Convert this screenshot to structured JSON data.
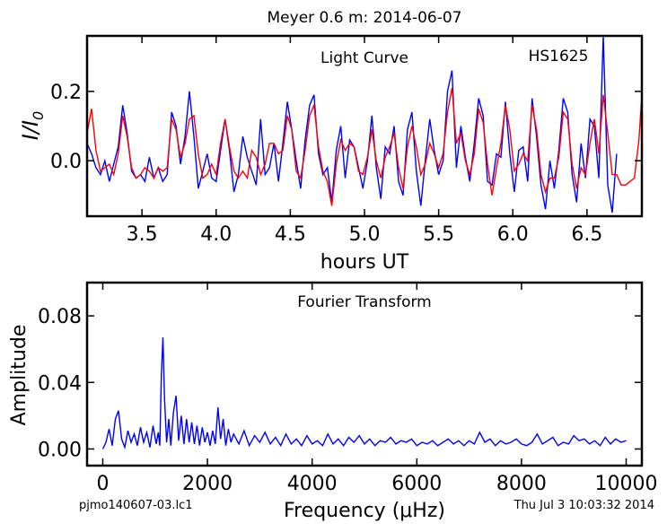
{
  "page": {
    "title": "Meyer 0.6 m:  2014-06-07",
    "footer_left": "pjmo140607-03.lc1",
    "footer_right": "Thu Jul  3 10:03:32 2014"
  },
  "chart_data": [
    {
      "type": "line",
      "title": "Light Curve",
      "annotation": "HS1625",
      "xlabel": "hours UT",
      "ylabel_main": "I/I",
      "ylabel_sub": "0",
      "xlim": [
        3.13,
        6.87
      ],
      "ylim": [
        -0.16,
        0.36
      ],
      "xticks": [
        3.5,
        4.0,
        4.5,
        5.0,
        5.5,
        6.0,
        6.5
      ],
      "xtick_labels": [
        "3.5",
        "4.0",
        "4.5",
        "5.0",
        "5.5",
        "6.0",
        "6.5"
      ],
      "yticks": [
        0.0,
        0.2
      ],
      "ytick_labels": [
        "0.0",
        "0.2"
      ],
      "grid": false,
      "series": [
        {
          "color": "#0000ff",
          "x": [
            3.13,
            3.16,
            3.19,
            3.22,
            3.25,
            3.28,
            3.31,
            3.34,
            3.37,
            3.4,
            3.43,
            3.46,
            3.49,
            3.52,
            3.55,
            3.58,
            3.61,
            3.64,
            3.67,
            3.7,
            3.73,
            3.76,
            3.79,
            3.82,
            3.85,
            3.88,
            3.91,
            3.94,
            3.97,
            4.0,
            4.03,
            4.06,
            4.09,
            4.12,
            4.15,
            4.18,
            4.21,
            4.24,
            4.27,
            4.3,
            4.33,
            4.36,
            4.39,
            4.42,
            4.45,
            4.48,
            4.51,
            4.54,
            4.57,
            4.6,
            4.63,
            4.66,
            4.69,
            4.72,
            4.75,
            4.78,
            4.81,
            4.84,
            4.87,
            4.9,
            4.93,
            4.96,
            4.99,
            5.02,
            5.05,
            5.08,
            5.11,
            5.14,
            5.17,
            5.2,
            5.23,
            5.26,
            5.29,
            5.32,
            5.35,
            5.38,
            5.41,
            5.44,
            5.47,
            5.5,
            5.53,
            5.56,
            5.59,
            5.62,
            5.65,
            5.68,
            5.71,
            5.74,
            5.77,
            5.8,
            5.83,
            5.86,
            5.89,
            5.92,
            5.95,
            5.98,
            6.01,
            6.04,
            6.07,
            6.1,
            6.13,
            6.16,
            6.19,
            6.22,
            6.25,
            6.28,
            6.31,
            6.34,
            6.37,
            6.4,
            6.43,
            6.46,
            6.49,
            6.52,
            6.55,
            6.58,
            6.61,
            6.64,
            6.67,
            6.7
          ],
          "y": [
            0.05,
            0.02,
            -0.02,
            -0.04,
            0.0,
            -0.06,
            -0.01,
            0.04,
            0.16,
            0.08,
            -0.03,
            -0.05,
            -0.04,
            -0.06,
            0.01,
            -0.05,
            -0.02,
            -0.06,
            -0.04,
            0.14,
            0.1,
            -0.01,
            0.07,
            0.2,
            0.07,
            -0.08,
            -0.03,
            0.02,
            -0.05,
            -0.06,
            0.03,
            0.12,
            0.03,
            -0.09,
            -0.04,
            0.07,
            0.01,
            -0.03,
            -0.07,
            0.12,
            -0.04,
            -0.02,
            0.05,
            -0.06,
            0.05,
            0.17,
            0.09,
            0.0,
            -0.08,
            0.06,
            0.16,
            0.19,
            0.02,
            -0.04,
            -0.02,
            -0.12,
            0.03,
            0.1,
            -0.05,
            0.06,
            0.04,
            -0.02,
            -0.08,
            0.0,
            0.13,
            -0.02,
            -0.11,
            0.04,
            0.02,
            0.1,
            -0.06,
            -0.1,
            0.09,
            0.14,
            -0.03,
            -0.13,
            0.0,
            0.12,
            0.03,
            -0.04,
            0.0,
            0.2,
            0.26,
            -0.02,
            0.1,
            0.01,
            -0.06,
            0.05,
            0.18,
            0.13,
            -0.06,
            -0.07,
            0.02,
            0.01,
            0.17,
            0.02,
            -0.09,
            0.03,
            0.04,
            -0.06,
            0.18,
            0.07,
            -0.07,
            -0.14,
            0.0,
            -0.08,
            0.03,
            0.18,
            0.14,
            -0.04,
            -0.12,
            0.05,
            -0.05,
            0.12,
            0.1,
            -0.05,
            0.36,
            -0.07,
            -0.15,
            0.02
          ]
        },
        {
          "color": "#ff0000",
          "x": [
            3.13,
            3.16,
            3.19,
            3.22,
            3.25,
            3.28,
            3.31,
            3.34,
            3.37,
            3.4,
            3.43,
            3.46,
            3.49,
            3.52,
            3.55,
            3.58,
            3.61,
            3.64,
            3.67,
            3.7,
            3.73,
            3.76,
            3.79,
            3.82,
            3.85,
            3.88,
            3.91,
            3.94,
            3.97,
            4.0,
            4.03,
            4.06,
            4.09,
            4.12,
            4.15,
            4.18,
            4.21,
            4.24,
            4.27,
            4.3,
            4.33,
            4.36,
            4.39,
            4.42,
            4.45,
            4.48,
            4.51,
            4.54,
            4.57,
            4.6,
            4.63,
            4.66,
            4.69,
            4.72,
            4.75,
            4.78,
            4.81,
            4.84,
            4.87,
            4.9,
            4.93,
            4.96,
            4.99,
            5.02,
            5.05,
            5.08,
            5.11,
            5.14,
            5.17,
            5.2,
            5.23,
            5.26,
            5.29,
            5.32,
            5.35,
            5.38,
            5.41,
            5.44,
            5.47,
            5.5,
            5.53,
            5.56,
            5.59,
            5.62,
            5.65,
            5.68,
            5.71,
            5.74,
            5.77,
            5.8,
            5.83,
            5.86,
            5.89,
            5.92,
            5.95,
            5.98,
            6.01,
            6.04,
            6.07,
            6.1,
            6.13,
            6.16,
            6.19,
            6.22,
            6.25,
            6.28,
            6.31,
            6.34,
            6.37,
            6.4,
            6.43,
            6.46,
            6.49,
            6.52,
            6.55,
            6.58,
            6.61,
            6.64,
            6.67,
            6.7,
            6.73,
            6.76,
            6.79,
            6.82,
            6.85,
            6.87
          ],
          "y": [
            0.08,
            0.15,
            0.03,
            -0.03,
            -0.02,
            -0.01,
            -0.04,
            0.02,
            0.13,
            0.07,
            -0.02,
            -0.05,
            -0.04,
            -0.02,
            -0.03,
            -0.05,
            -0.02,
            -0.03,
            -0.02,
            0.12,
            0.09,
            0.01,
            0.05,
            0.12,
            0.13,
            0.02,
            -0.05,
            -0.04,
            -0.01,
            -0.04,
            0.05,
            0.12,
            0.04,
            -0.03,
            -0.05,
            -0.03,
            -0.05,
            0.03,
            0.01,
            -0.04,
            -0.01,
            0.05,
            0.05,
            0.02,
            0.03,
            0.13,
            0.09,
            -0.03,
            -0.05,
            0.03,
            0.13,
            0.16,
            0.04,
            -0.03,
            -0.06,
            -0.13,
            -0.01,
            0.06,
            0.03,
            0.05,
            0.04,
            -0.03,
            -0.04,
            0.01,
            0.09,
            0.0,
            -0.05,
            0.01,
            0.04,
            0.08,
            -0.02,
            -0.08,
            0.04,
            0.1,
            0.04,
            -0.04,
            -0.01,
            0.05,
            0.02,
            -0.02,
            0.02,
            0.14,
            0.21,
            0.05,
            0.08,
            0.0,
            -0.04,
            0.02,
            0.15,
            0.11,
            -0.01,
            -0.1,
            -0.02,
            0.05,
            0.16,
            0.09,
            -0.03,
            -0.01,
            0.02,
            0.0,
            0.16,
            0.09,
            -0.04,
            -0.09,
            -0.05,
            -0.05,
            0.01,
            0.14,
            0.12,
            -0.01,
            -0.08,
            -0.02,
            -0.04,
            0.05,
            0.12,
            0.02,
            0.19,
            0.08,
            -0.04,
            -0.04,
            -0.07,
            -0.07,
            -0.06,
            -0.05,
            0.06,
            0.19
          ]
        }
      ]
    },
    {
      "type": "line",
      "title": "Fourier Transform",
      "xlabel": "Frequency (μHz)",
      "ylabel": "Amplitude",
      "xlim": [
        -300,
        10300
      ],
      "ylim": [
        -0.01,
        0.1
      ],
      "xticks": [
        0,
        2000,
        4000,
        6000,
        8000,
        10000
      ],
      "xtick_labels": [
        "0",
        "2000",
        "4000",
        "6000",
        "8000",
        "10000"
      ],
      "yticks": [
        0.0,
        0.04,
        0.08
      ],
      "ytick_labels": [
        "0.00",
        "0.04",
        "0.08"
      ],
      "grid": false,
      "series": [
        {
          "color": "#0000ff",
          "x": [
            0,
            60,
            120,
            180,
            240,
            300,
            360,
            420,
            480,
            540,
            600,
            660,
            720,
            780,
            840,
            900,
            960,
            1020,
            1060,
            1090,
            1120,
            1150,
            1180,
            1220,
            1260,
            1300,
            1350,
            1400,
            1450,
            1500,
            1550,
            1600,
            1650,
            1700,
            1750,
            1800,
            1850,
            1900,
            1950,
            2000,
            2050,
            2100,
            2150,
            2200,
            2250,
            2300,
            2350,
            2400,
            2450,
            2500,
            2600,
            2700,
            2800,
            2900,
            3000,
            3100,
            3200,
            3300,
            3400,
            3500,
            3600,
            3700,
            3800,
            3900,
            4000,
            4100,
            4200,
            4300,
            4400,
            4500,
            4600,
            4700,
            4800,
            4900,
            5000,
            5100,
            5200,
            5300,
            5400,
            5500,
            5600,
            5700,
            5800,
            5900,
            6000,
            6100,
            6200,
            6300,
            6400,
            6500,
            6600,
            6700,
            6800,
            6900,
            7000,
            7100,
            7200,
            7300,
            7400,
            7500,
            7600,
            7700,
            7800,
            7900,
            8000,
            8100,
            8200,
            8300,
            8400,
            8500,
            8600,
            8700,
            8800,
            8900,
            9000,
            9100,
            9200,
            9300,
            9400,
            9500,
            9600,
            9700,
            9800,
            9900,
            10000
          ],
          "y": [
            0.0,
            0.004,
            0.012,
            0.002,
            0.018,
            0.023,
            0.006,
            0.001,
            0.011,
            0.004,
            0.009,
            0.002,
            0.013,
            0.004,
            0.01,
            0.001,
            0.014,
            0.003,
            0.01,
            0.002,
            0.045,
            0.067,
            0.03,
            0.004,
            0.018,
            0.002,
            0.022,
            0.032,
            0.005,
            0.02,
            0.003,
            0.018,
            0.004,
            0.016,
            0.003,
            0.014,
            0.002,
            0.013,
            0.004,
            0.01,
            0.002,
            0.011,
            0.003,
            0.025,
            0.006,
            0.018,
            0.002,
            0.012,
            0.004,
            0.009,
            0.003,
            0.011,
            0.002,
            0.008,
            0.004,
            0.01,
            0.003,
            0.007,
            0.002,
            0.009,
            0.003,
            0.006,
            0.002,
            0.008,
            0.003,
            0.005,
            0.002,
            0.009,
            0.003,
            0.006,
            0.002,
            0.007,
            0.004,
            0.008,
            0.003,
            0.006,
            0.002,
            0.005,
            0.004,
            0.007,
            0.003,
            0.005,
            0.004,
            0.006,
            0.002,
            0.004,
            0.003,
            0.005,
            0.002,
            0.004,
            0.006,
            0.003,
            0.005,
            0.002,
            0.005,
            0.003,
            0.01,
            0.004,
            0.006,
            0.002,
            0.005,
            0.003,
            0.004,
            0.006,
            0.003,
            0.002,
            0.004,
            0.009,
            0.003,
            0.005,
            0.007,
            0.002,
            0.004,
            0.003,
            0.008,
            0.005,
            0.006,
            0.003,
            0.005,
            0.002,
            0.007,
            0.003,
            0.006,
            0.004,
            0.005
          ]
        }
      ]
    }
  ]
}
